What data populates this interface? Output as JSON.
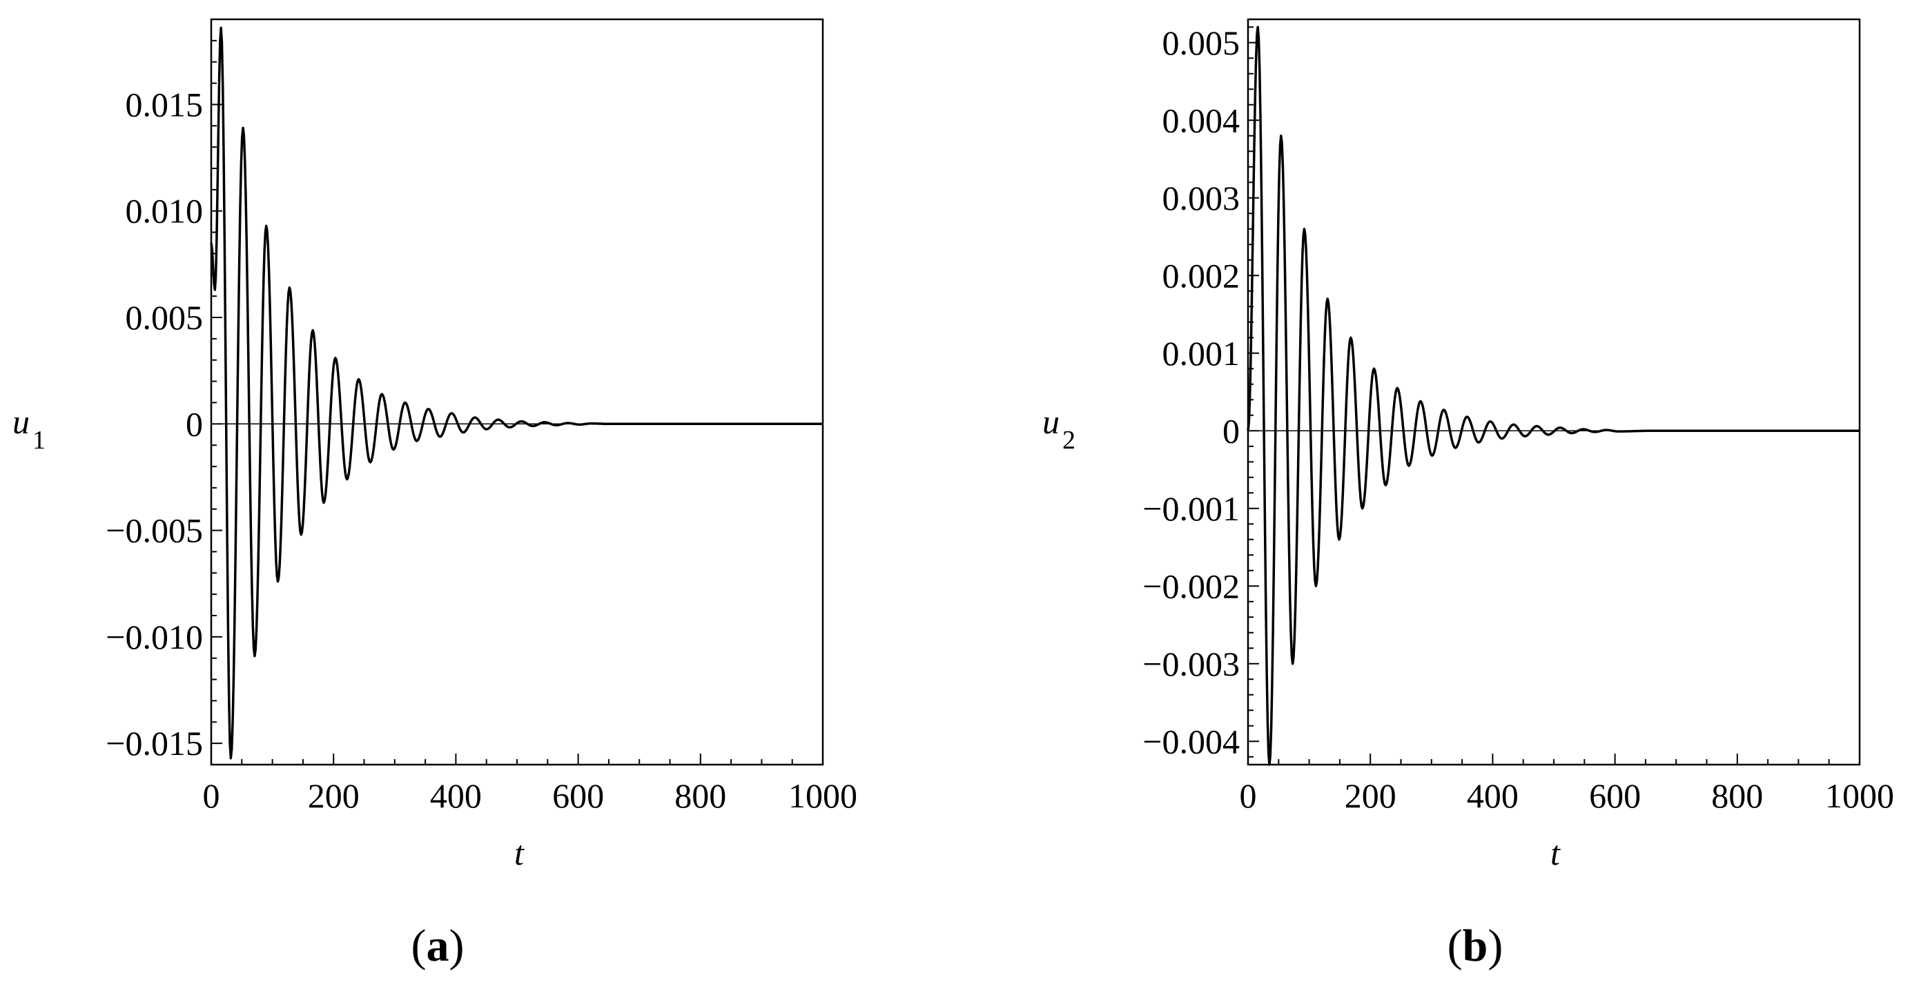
{
  "chart_data": [
    {
      "type": "line",
      "panel_label": "(a)",
      "panel_letter": "a",
      "xlabel": "t",
      "ylabel": "u",
      "ylabel_subscript": "1",
      "xlim": [
        0,
        1000
      ],
      "ylim": [
        -0.016,
        0.019
      ],
      "x_ticks": [
        0,
        200,
        400,
        600,
        800,
        1000
      ],
      "x_tick_labels": [
        "0",
        "200",
        "400",
        "600",
        "800",
        "1000"
      ],
      "y_ticks": [
        -0.015,
        -0.01,
        -0.005,
        0,
        0.005,
        0.01,
        0.015
      ],
      "y_tick_labels": [
        "−0.015",
        "−0.010",
        "−0.005",
        "0",
        "0.005",
        "0.010",
        "0.015"
      ],
      "grid": false,
      "series": [
        {
          "color": "#000000",
          "extrema": [
            [
              0,
              0.0085
            ],
            [
              6,
              0.0063
            ],
            [
              16,
              0.0186
            ],
            [
              32,
              -0.0157
            ],
            [
              52,
              0.0139
            ],
            [
              71,
              -0.0109
            ],
            [
              90,
              0.0093
            ],
            [
              109,
              -0.0074
            ],
            [
              128,
              0.0064
            ],
            [
              147,
              -0.0052
            ],
            [
              166,
              0.0044
            ],
            [
              184,
              -0.0037
            ],
            [
              203,
              0.0031
            ],
            [
              222,
              -0.0026
            ],
            [
              241,
              0.0021
            ],
            [
              260,
              -0.0018
            ],
            [
              279,
              0.0014
            ],
            [
              298,
              -0.0012
            ],
            [
              317,
              0.001
            ],
            [
              336,
              -0.0008
            ],
            [
              355,
              0.0007
            ],
            [
              374,
              -0.0006
            ],
            [
              393,
              0.0005
            ],
            [
              412,
              -0.0004
            ],
            [
              431,
              0.0003
            ],
            [
              450,
              -0.00025
            ],
            [
              469,
              0.0002
            ],
            [
              488,
              -0.00016
            ],
            [
              507,
              0.00012
            ],
            [
              526,
              -0.0001
            ],
            [
              545,
              8e-05
            ],
            [
              564,
              -6e-05
            ],
            [
              583,
              4e-05
            ],
            [
              602,
              -3e-05
            ],
            [
              621,
              2e-05
            ],
            [
              650,
              0
            ],
            [
              1000,
              0
            ]
          ]
        }
      ]
    },
    {
      "type": "line",
      "panel_label": "(b)",
      "panel_letter": "b",
      "xlabel": "t",
      "ylabel": "u",
      "ylabel_subscript": "2",
      "xlim": [
        0,
        1000
      ],
      "ylim": [
        -0.0043,
        0.0053
      ],
      "x_ticks": [
        0,
        200,
        400,
        600,
        800,
        1000
      ],
      "x_tick_labels": [
        "0",
        "200",
        "400",
        "600",
        "800",
        "1000"
      ],
      "y_ticks": [
        -0.004,
        -0.003,
        -0.002,
        -0.001,
        0,
        0.001,
        0.002,
        0.003,
        0.004,
        0.005
      ],
      "y_tick_labels": [
        "−0.004",
        "−0.003",
        "−0.002",
        "−0.001",
        "0",
        "0.001",
        "0.002",
        "0.003",
        "0.004",
        "0.005"
      ],
      "grid": false,
      "series": [
        {
          "color": "#000000",
          "extrema": [
            [
              0,
              0
            ],
            [
              16,
              0.0052
            ],
            [
              35,
              -0.0043
            ],
            [
              54,
              0.0038
            ],
            [
              73,
              -0.003
            ],
            [
              92,
              0.0026
            ],
            [
              111,
              -0.002
            ],
            [
              130,
              0.0017
            ],
            [
              149,
              -0.0014
            ],
            [
              168,
              0.0012
            ],
            [
              187,
              -0.001
            ],
            [
              206,
              0.0008
            ],
            [
              225,
              -0.0007
            ],
            [
              244,
              0.00055
            ],
            [
              263,
              -0.00045
            ],
            [
              282,
              0.00038
            ],
            [
              301,
              -0.00032
            ],
            [
              320,
              0.00027
            ],
            [
              339,
              -0.00022
            ],
            [
              358,
              0.00018
            ],
            [
              377,
              -0.00015
            ],
            [
              396,
              0.00012
            ],
            [
              415,
              -0.0001
            ],
            [
              434,
              8e-05
            ],
            [
              453,
              -7e-05
            ],
            [
              472,
              6e-05
            ],
            [
              491,
              -5e-05
            ],
            [
              510,
              4e-05
            ],
            [
              529,
              -3e-05
            ],
            [
              548,
              2e-05
            ],
            [
              567,
              -1.5e-05
            ],
            [
              586,
              1e-05
            ],
            [
              605,
              -8e-06
            ],
            [
              660,
              0
            ],
            [
              1000,
              0
            ]
          ]
        }
      ]
    }
  ]
}
